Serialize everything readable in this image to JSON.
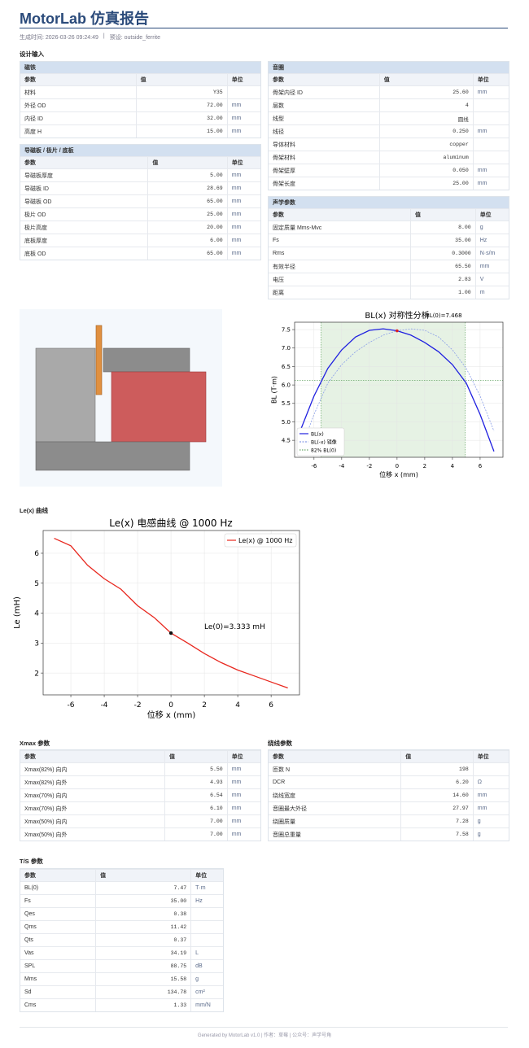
{
  "header": {
    "title": "MotorLab 仿真报告",
    "generated": "生成时间: 2026-03-26 09:24:49",
    "separator": "|",
    "preset": "预设: outside_ferrite"
  },
  "sections": {
    "design": "设计输入",
    "le": "Le(x) 曲线"
  },
  "tables": {
    "magnet": {
      "title": "磁铁",
      "headers": [
        "参数",
        "值",
        "单位"
      ],
      "rows": [
        [
          "材料",
          "Y35"
        ],
        [
          "外径 OD",
          "72.00",
          "mm"
        ],
        [
          "内径 ID",
          "32.00",
          "mm"
        ],
        [
          "高度 H",
          "15.00",
          "mm"
        ]
      ]
    },
    "plates": {
      "title": "导磁板 / 极片 / 底板",
      "headers": [
        "参数",
        "值",
        "单位"
      ],
      "rows": [
        [
          "导磁板厚度",
          "5.00",
          "mm"
        ],
        [
          "导磁板 ID",
          "28.69",
          "mm"
        ],
        [
          "导磁板 OD",
          "65.00",
          "mm"
        ],
        [
          "极片 OD",
          "25.00",
          "mm"
        ],
        [
          "极片高度",
          "20.00",
          "mm"
        ],
        [
          "底板厚度",
          "6.00",
          "mm"
        ],
        [
          "底板 OD",
          "65.00",
          "mm"
        ]
      ]
    },
    "coil": {
      "title": "音圈",
      "headers": [
        "参数",
        "值",
        "单位"
      ],
      "rows": [
        [
          "骨架内径 ID",
          "25.60",
          "mm"
        ],
        [
          "层数",
          "4"
        ],
        [
          "线型",
          "圆线"
        ],
        [
          "线径",
          "0.250",
          "mm"
        ],
        [
          "导体材料",
          "copper"
        ],
        [
          "骨架材料",
          "aluminum"
        ],
        [
          "骨架壁厚",
          "0.050",
          "mm"
        ],
        [
          "骨架长度",
          "25.00",
          "mm"
        ]
      ]
    },
    "acoustic": {
      "title": "声学参数",
      "headers": [
        "参数",
        "值",
        "单位"
      ],
      "rows": [
        [
          "固定质量 Mms-Mvc",
          "8.00",
          "g"
        ],
        [
          "Fs",
          "35.00",
          "Hz"
        ],
        [
          "Rms",
          "0.3000",
          "N·s/m"
        ],
        [
          "有效半径",
          "65.50",
          "mm"
        ],
        [
          "电压",
          "2.83",
          "V"
        ],
        [
          "距离",
          "1.00",
          "m"
        ]
      ]
    },
    "xmax": {
      "title": "Xmax 参数",
      "headers": [
        "参数",
        "值",
        "单位"
      ],
      "rows": [
        [
          "Xmax(82%) 向内",
          "5.50",
          "mm"
        ],
        [
          "Xmax(82%) 向外",
          "4.93",
          "mm"
        ],
        [
          "Xmax(70%) 向内",
          "6.54",
          "mm"
        ],
        [
          "Xmax(70%) 向外",
          "6.10",
          "mm"
        ],
        [
          "Xmax(50%) 向内",
          "7.00",
          "mm"
        ],
        [
          "Xmax(50%) 向外",
          "7.00",
          "mm"
        ]
      ]
    },
    "winding": {
      "title": "绕线参数",
      "headers": [
        "参数",
        "值",
        "单位"
      ],
      "rows": [
        [
          "匝数 N",
          "198"
        ],
        [
          "DCR",
          "6.20",
          "Ω"
        ],
        [
          "绕线宽度",
          "14.60",
          "mm"
        ],
        [
          "音圈最大外径",
          "27.97",
          "mm"
        ],
        [
          "绕圈质量",
          "7.28",
          "g"
        ],
        [
          "音圈总重量",
          "7.58",
          "g"
        ]
      ]
    },
    "ts": {
      "title": "T/S 参数",
      "headers": [
        "参数",
        "值",
        "单位"
      ],
      "rows": [
        [
          "BL(0)",
          "7.47",
          "T·m"
        ],
        [
          "Fs",
          "35.00",
          "Hz"
        ],
        [
          "Qes",
          "0.38"
        ],
        [
          "Qms",
          "11.42"
        ],
        [
          "Qts",
          "0.37"
        ],
        [
          "Vas",
          "34.19",
          "L"
        ],
        [
          "SPL",
          "88.75",
          "dB"
        ],
        [
          "Mms",
          "15.58",
          "g"
        ],
        [
          "Sd",
          "134.78",
          "cm²"
        ],
        [
          "Cms",
          "1.33",
          "mm/N"
        ]
      ]
    }
  },
  "chart_data": [
    {
      "type": "line",
      "title": "BL(x) 对称性分析",
      "annotation": "BL(0)=7.468",
      "x_label": "位移 x (mm)",
      "y_label": "BL (T·m)",
      "x": [
        -7,
        -6,
        -5,
        -4,
        -3,
        -2,
        -1,
        0,
        1,
        2,
        3,
        4,
        5,
        6,
        7
      ],
      "series": [
        {
          "name": "BL(x)",
          "color": "#1f1fe0",
          "values": [
            4.75,
            5.7,
            6.45,
            6.95,
            7.3,
            7.48,
            7.52,
            7.468,
            7.35,
            7.15,
            6.9,
            6.55,
            6.05,
            5.2,
            4.2
          ]
        },
        {
          "name": "BL(-x) 镜像",
          "color": "#8a9ee8",
          "values": [
            4.2,
            5.2,
            6.05,
            6.55,
            6.9,
            7.15,
            7.35,
            7.468,
            7.52,
            7.48,
            7.3,
            6.95,
            6.45,
            5.7,
            4.75
          ]
        }
      ],
      "threshold": {
        "name": "82% BL(0)",
        "value": 6.124,
        "color": "#6aa86a"
      },
      "band": [
        -5.5,
        4.93
      ],
      "marker": {
        "x": 0,
        "y": 7.468
      },
      "xlim": [
        -7.4,
        7.65
      ],
      "xticks": [
        -6,
        -4,
        -2,
        0,
        2,
        4,
        6
      ],
      "ylim": [
        4.04,
        7.7
      ],
      "yticks": [
        4.5,
        {
          "value": 5,
          "label": "5.0"
        },
        5.5,
        {
          "value": 6,
          "label": "6.0"
        },
        6.5,
        {
          "value": 7,
          "label": "7.0"
        },
        7.5
      ],
      "grid": true,
      "legend": "lower left"
    },
    {
      "type": "line",
      "title": "Le(x) 电感曲线 @ 1000 Hz",
      "annotation": "Le(0)=3.333 mH",
      "x_label": "位移 x (mm)",
      "y_label": "Le (mH)",
      "x": [
        -7,
        -6,
        -5,
        -4,
        -3,
        -2,
        -1,
        0,
        1,
        2,
        3,
        4,
        5,
        6,
        7
      ],
      "series": [
        {
          "name": "Le(x) @ 1000 Hz",
          "color": "#e8271e",
          "values": [
            6.5,
            6.25,
            5.6,
            5.15,
            4.8,
            4.25,
            3.85,
            3.333,
            3.0,
            2.65,
            2.35,
            2.1,
            1.9,
            1.7,
            1.5
          ]
        }
      ],
      "marker": {
        "x": 0,
        "y": 3.333
      },
      "xlim": [
        -7.66,
        7.7
      ],
      "xticks": [
        -6,
        -4,
        -2,
        0,
        2,
        4,
        6
      ],
      "ylim": [
        1.27,
        6.76
      ],
      "yticks": [
        2,
        3,
        4,
        5,
        6
      ],
      "grid": true,
      "legend": "upper right"
    }
  ],
  "footer": "Generated by MotorLab v1.0 | 作者：草莓 | 公众号：声学号角"
}
